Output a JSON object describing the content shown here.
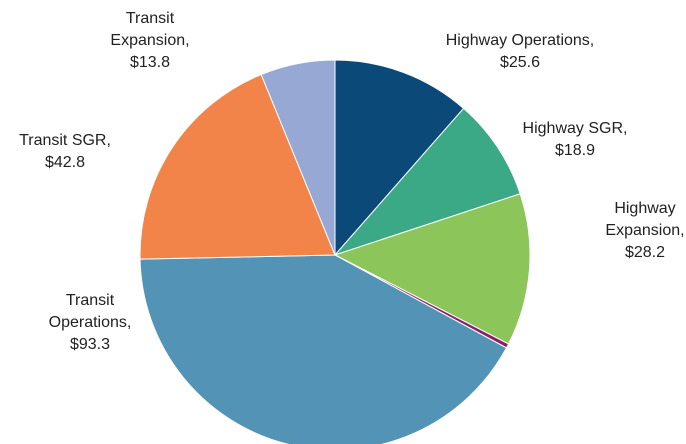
{
  "chart_data": {
    "type": "pie",
    "categories": [
      "Highway Operations,",
      "Highway SGR,",
      "Highway Expansion,",
      null,
      "Transit Operations,",
      "Transit SGR,",
      "Transit Expansion,"
    ],
    "values": [
      25.6,
      18.9,
      28.2,
      0.8,
      93.3,
      42.8,
      13.8
    ],
    "value_labels": [
      "$25.6",
      "$18.9",
      "$28.2",
      null,
      "$93.3",
      "$42.8",
      "$13.8"
    ],
    "colors": [
      "#0b4a78",
      "#3ba886",
      "#8cc65a",
      "#8b1f6e",
      "#5393b6",
      "#f2844a",
      "#96a8d3"
    ]
  }
}
